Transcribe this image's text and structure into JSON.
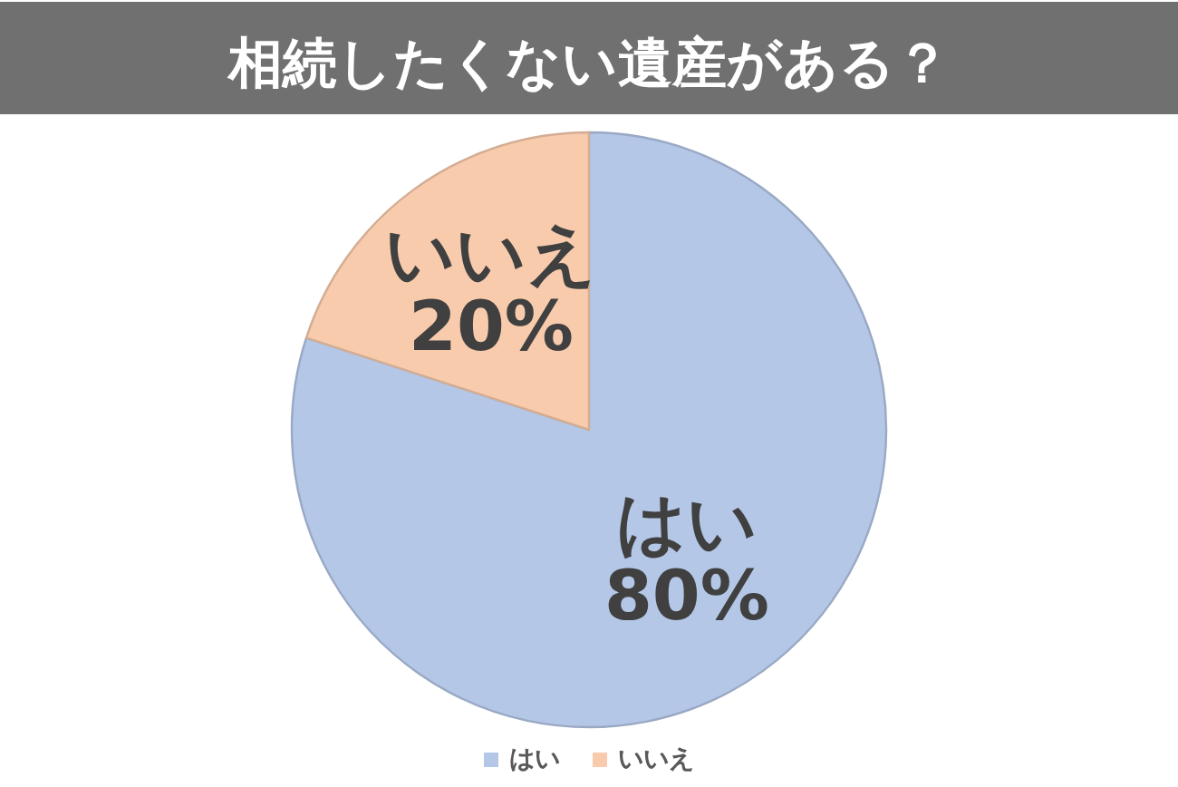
{
  "chart_data": {
    "type": "pie",
    "title": "相続したくない遺産がある？",
    "categories": [
      "はい",
      "いいえ"
    ],
    "values": [
      80,
      20
    ],
    "colors": [
      "#b4c7e7",
      "#f8cbad"
    ],
    "value_labels": [
      "80%",
      "20%"
    ],
    "legend": "bottom"
  }
}
